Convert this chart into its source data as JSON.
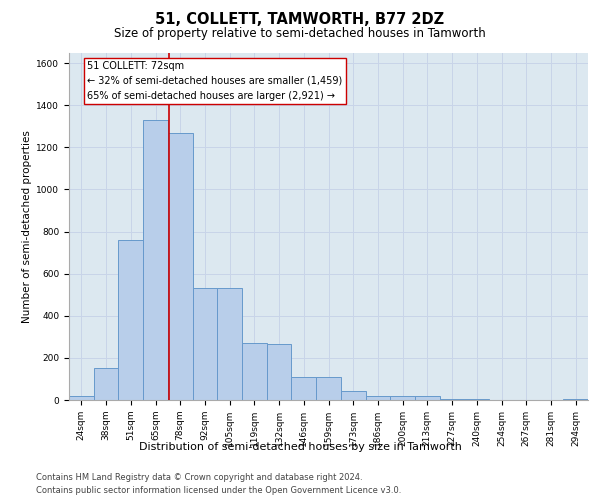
{
  "title1": "51, COLLETT, TAMWORTH, B77 2DZ",
  "title2": "Size of property relative to semi-detached houses in Tamworth",
  "xlabel": "Distribution of semi-detached houses by size in Tamworth",
  "ylabel": "Number of semi-detached properties",
  "footer1": "Contains HM Land Registry data © Crown copyright and database right 2024.",
  "footer2": "Contains public sector information licensed under the Open Government Licence v3.0.",
  "categories": [
    "24sqm",
    "38sqm",
    "51sqm",
    "65sqm",
    "78sqm",
    "92sqm",
    "105sqm",
    "119sqm",
    "132sqm",
    "146sqm",
    "159sqm",
    "173sqm",
    "186sqm",
    "200sqm",
    "213sqm",
    "227sqm",
    "240sqm",
    "254sqm",
    "267sqm",
    "281sqm",
    "294sqm"
  ],
  "values": [
    20,
    150,
    760,
    1330,
    1270,
    530,
    530,
    270,
    265,
    110,
    110,
    45,
    20,
    20,
    20,
    5,
    5,
    0,
    0,
    0,
    5
  ],
  "bar_color": "#b8ceea",
  "bar_edge_color": "#6699cc",
  "vline_color": "#cc0000",
  "vline_x": 3.54,
  "annotation_text": "51 COLLETT: 72sqm\n← 32% of semi-detached houses are smaller (1,459)\n65% of semi-detached houses are larger (2,921) →",
  "annotation_box_facecolor": "#ffffff",
  "annotation_box_edgecolor": "#cc0000",
  "ylim": [
    0,
    1650
  ],
  "yticks": [
    0,
    200,
    400,
    600,
    800,
    1000,
    1200,
    1400,
    1600
  ],
  "grid_color": "#c8d4e8",
  "bg_color": "#dce8f0",
  "title1_fontsize": 10.5,
  "title2_fontsize": 8.5,
  "ylabel_fontsize": 7.5,
  "xlabel_fontsize": 8,
  "tick_fontsize": 6.5,
  "annotation_fontsize": 7,
  "footer_fontsize": 6
}
